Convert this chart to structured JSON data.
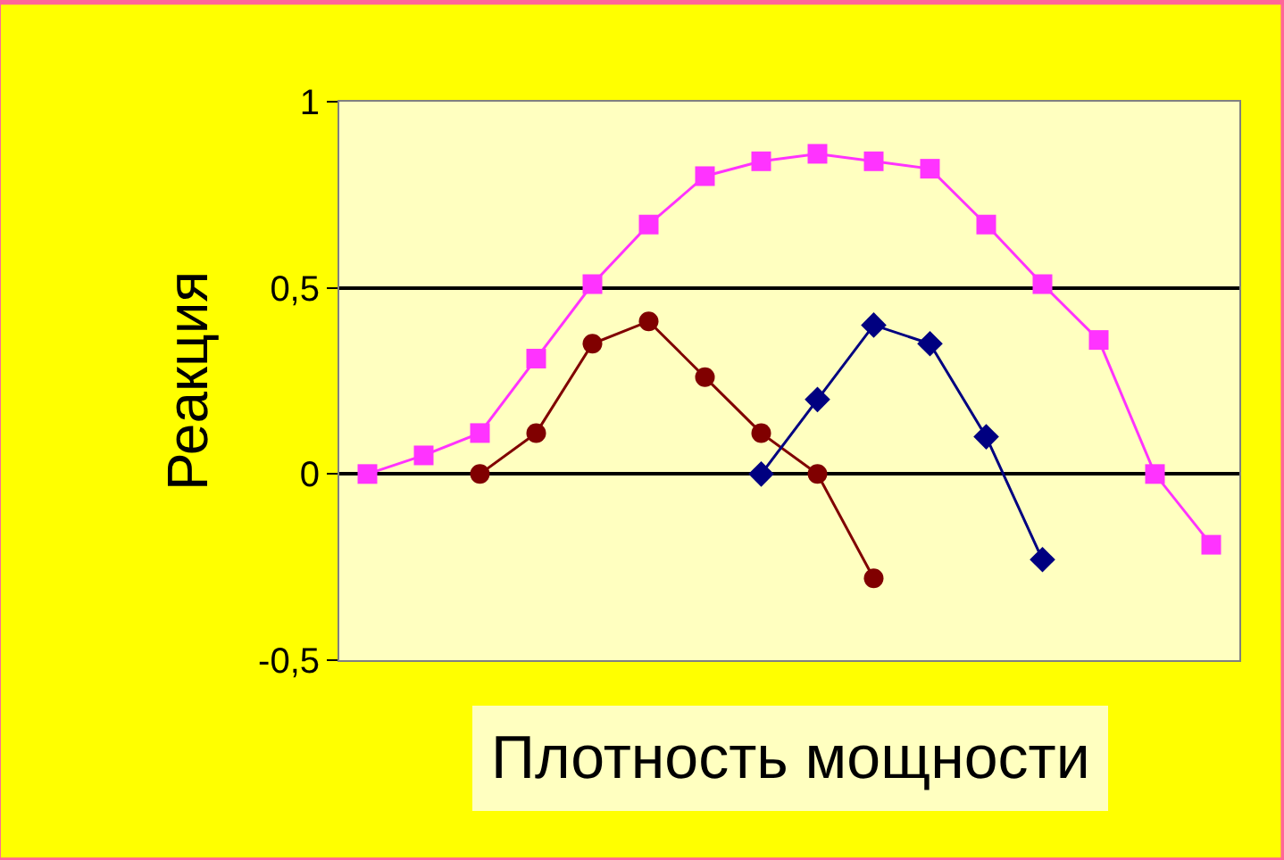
{
  "chart_data": {
    "type": "line",
    "xlabel": "Плотность мощности",
    "ylabel": "Реакция",
    "categories": [
      null,
      null,
      null,
      null,
      null,
      null,
      null,
      null,
      null,
      null,
      null,
      null,
      null,
      null,
      null,
      null
    ],
    "ylim": [
      -0.5,
      1
    ],
    "yticks": [
      {
        "value": -0.5,
        "label": "-0,5"
      },
      0,
      {
        "value": 0.5,
        "label": "0,5"
      },
      1
    ],
    "grid": "y",
    "series": [
      {
        "color": "#ff33ff",
        "marker": "square",
        "values": [
          0,
          0.05,
          0.11,
          0.31,
          0.51,
          0.67,
          0.8,
          0.84,
          0.86,
          0.84,
          0.82,
          0.67,
          0.51,
          0.36,
          0,
          -0.19
        ]
      },
      {
        "color": "#800000",
        "marker": "circle",
        "values": [
          null,
          null,
          0,
          0.11,
          0.35,
          0.41,
          0.26,
          0.11,
          0,
          -0.28,
          null,
          null,
          null,
          null,
          null,
          null
        ]
      },
      {
        "color": "#000080",
        "marker": "diamond",
        "values": [
          null,
          null,
          null,
          null,
          null,
          null,
          null,
          0,
          0.2,
          0.4,
          0.35,
          0.1,
          -0.23,
          null,
          null,
          null
        ]
      }
    ]
  }
}
